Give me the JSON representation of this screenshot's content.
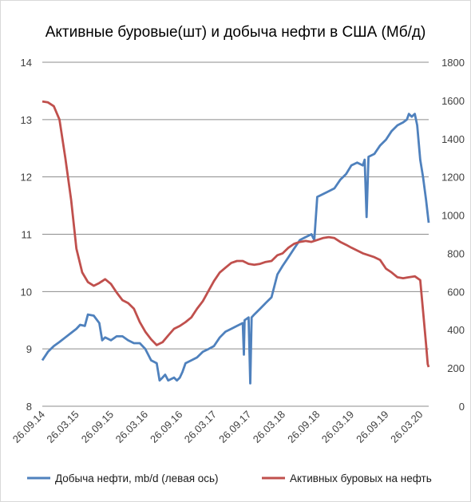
{
  "chart_data": {
    "type": "line",
    "title": "Активные буровые(шт) и добыча нефти в США (Мб/д)",
    "x_axis": {
      "tick_labels": [
        "26.09.14",
        "26.03.15",
        "26.09.15",
        "26.03.16",
        "26.09.16",
        "26.03.17",
        "26.09.17",
        "26.03.18",
        "26.09.18",
        "26.03.19",
        "26.09.19",
        "26.03.20"
      ],
      "range": [
        "26.09.14",
        "10.05.20"
      ]
    },
    "y_left": {
      "min": 8,
      "max": 14,
      "step": 1,
      "tick_labels": [
        "8",
        "9",
        "10",
        "11",
        "12",
        "13",
        "14"
      ]
    },
    "y_right": {
      "min": 0,
      "max": 1800,
      "step": 200,
      "tick_labels": [
        "0",
        "200",
        "400",
        "600",
        "800",
        "1000",
        "1200",
        "1400",
        "1600",
        "1800"
      ]
    },
    "grid": true,
    "legend_position": "bottom",
    "series": [
      {
        "name": "Добыча нефти, mb/d (левая ось)",
        "axis": "left",
        "color": "#4f81bd",
        "points": [
          [
            "26.09.14",
            8.8
          ],
          [
            "26.10.14",
            8.95
          ],
          [
            "26.11.14",
            9.05
          ],
          [
            "26.12.14",
            9.12
          ],
          [
            "26.01.15",
            9.2
          ],
          [
            "26.02.15",
            9.28
          ],
          [
            "26.03.15",
            9.35
          ],
          [
            "15.04.15",
            9.42
          ],
          [
            "10.05.15",
            9.4
          ],
          [
            "26.05.15",
            9.6
          ],
          [
            "26.06.15",
            9.58
          ],
          [
            "26.07.15",
            9.45
          ],
          [
            "10.08.15",
            9.15
          ],
          [
            "26.08.15",
            9.2
          ],
          [
            "26.09.15",
            9.15
          ],
          [
            "26.10.15",
            9.22
          ],
          [
            "26.11.15",
            9.22
          ],
          [
            "26.12.15",
            9.15
          ],
          [
            "26.01.16",
            9.1
          ],
          [
            "26.02.16",
            9.1
          ],
          [
            "26.03.16",
            9.0
          ],
          [
            "26.04.16",
            8.8
          ],
          [
            "26.05.16",
            8.75
          ],
          [
            "10.06.16",
            8.45
          ],
          [
            "26.06.16",
            8.5
          ],
          [
            "10.07.16",
            8.55
          ],
          [
            "26.07.16",
            8.45
          ],
          [
            "26.08.16",
            8.5
          ],
          [
            "10.09.16",
            8.45
          ],
          [
            "26.09.16",
            8.5
          ],
          [
            "10.10.16",
            8.6
          ],
          [
            "26.10.16",
            8.75
          ],
          [
            "26.11.16",
            8.8
          ],
          [
            "26.12.16",
            8.85
          ],
          [
            "26.01.17",
            8.95
          ],
          [
            "26.02.17",
            9.0
          ],
          [
            "26.03.17",
            9.05
          ],
          [
            "26.04.17",
            9.2
          ],
          [
            "26.05.17",
            9.3
          ],
          [
            "26.06.17",
            9.35
          ],
          [
            "26.07.17",
            9.4
          ],
          [
            "26.08.17",
            9.45
          ],
          [
            "01.09.17",
            8.9
          ],
          [
            "05.09.17",
            9.5
          ],
          [
            "26.09.17",
            9.55
          ],
          [
            "05.10.17",
            8.4
          ],
          [
            "12.10.17",
            9.55
          ],
          [
            "26.10.17",
            9.6
          ],
          [
            "26.11.17",
            9.7
          ],
          [
            "26.12.17",
            9.8
          ],
          [
            "26.01.18",
            9.9
          ],
          [
            "26.02.18",
            10.3
          ],
          [
            "26.03.18",
            10.45
          ],
          [
            "26.04.18",
            10.6
          ],
          [
            "26.05.18",
            10.75
          ],
          [
            "26.06.18",
            10.9
          ],
          [
            "26.07.18",
            10.95
          ],
          [
            "26.08.18",
            11.0
          ],
          [
            "10.09.18",
            10.9
          ],
          [
            "26.09.18",
            11.65
          ],
          [
            "26.10.18",
            11.7
          ],
          [
            "26.11.18",
            11.75
          ],
          [
            "26.12.18",
            11.8
          ],
          [
            "26.01.19",
            11.95
          ],
          [
            "26.02.19",
            12.05
          ],
          [
            "26.03.19",
            12.2
          ],
          [
            "26.04.19",
            12.25
          ],
          [
            "26.05.19",
            12.2
          ],
          [
            "05.06.19",
            12.3
          ],
          [
            "15.06.19",
            11.3
          ],
          [
            "25.06.19",
            12.35
          ],
          [
            "26.07.19",
            12.4
          ],
          [
            "26.08.19",
            12.55
          ],
          [
            "26.09.19",
            12.65
          ],
          [
            "26.10.19",
            12.8
          ],
          [
            "26.11.19",
            12.9
          ],
          [
            "26.12.19",
            12.95
          ],
          [
            "15.01.20",
            13.0
          ],
          [
            "26.01.20",
            13.1
          ],
          [
            "10.02.20",
            13.05
          ],
          [
            "26.02.20",
            13.1
          ],
          [
            "10.03.20",
            12.9
          ],
          [
            "26.03.20",
            12.3
          ],
          [
            "10.04.20",
            12.0
          ],
          [
            "26.04.20",
            11.6
          ],
          [
            "10.05.20",
            11.2
          ]
        ]
      },
      {
        "name": "Активных буровых на нефть",
        "axis": "right",
        "color": "#c0504d",
        "points": [
          [
            "26.09.14",
            1595
          ],
          [
            "26.10.14",
            1590
          ],
          [
            "26.11.14",
            1570
          ],
          [
            "26.12.14",
            1500
          ],
          [
            "26.01.15",
            1300
          ],
          [
            "26.02.15",
            1080
          ],
          [
            "26.03.15",
            825
          ],
          [
            "26.04.15",
            700
          ],
          [
            "26.05.15",
            650
          ],
          [
            "26.06.15",
            630
          ],
          [
            "26.07.15",
            645
          ],
          [
            "26.08.15",
            665
          ],
          [
            "26.09.15",
            640
          ],
          [
            "26.10.15",
            595
          ],
          [
            "26.11.15",
            555
          ],
          [
            "26.12.15",
            540
          ],
          [
            "26.01.16",
            510
          ],
          [
            "26.02.16",
            440
          ],
          [
            "26.03.16",
            390
          ],
          [
            "26.04.16",
            350
          ],
          [
            "26.05.16",
            320
          ],
          [
            "26.06.16",
            335
          ],
          [
            "26.07.16",
            370
          ],
          [
            "26.08.16",
            405
          ],
          [
            "26.09.16",
            420
          ],
          [
            "26.10.16",
            440
          ],
          [
            "26.11.16",
            465
          ],
          [
            "26.12.16",
            510
          ],
          [
            "26.01.17",
            550
          ],
          [
            "26.02.17",
            605
          ],
          [
            "26.03.17",
            655
          ],
          [
            "26.04.17",
            700
          ],
          [
            "26.05.17",
            725
          ],
          [
            "26.06.17",
            750
          ],
          [
            "26.07.17",
            760
          ],
          [
            "26.08.17",
            760
          ],
          [
            "26.09.17",
            745
          ],
          [
            "26.10.17",
            740
          ],
          [
            "26.11.17",
            745
          ],
          [
            "26.12.17",
            755
          ],
          [
            "26.01.18",
            760
          ],
          [
            "26.02.18",
            790
          ],
          [
            "26.03.18",
            800
          ],
          [
            "26.04.18",
            830
          ],
          [
            "26.05.18",
            850
          ],
          [
            "26.06.18",
            860
          ],
          [
            "26.07.18",
            865
          ],
          [
            "26.08.18",
            860
          ],
          [
            "26.09.18",
            870
          ],
          [
            "26.10.18",
            880
          ],
          [
            "26.11.18",
            885
          ],
          [
            "26.12.18",
            880
          ],
          [
            "26.01.19",
            860
          ],
          [
            "26.02.19",
            845
          ],
          [
            "26.03.19",
            830
          ],
          [
            "26.04.19",
            815
          ],
          [
            "26.05.19",
            800
          ],
          [
            "26.06.19",
            790
          ],
          [
            "26.07.19",
            780
          ],
          [
            "26.08.19",
            765
          ],
          [
            "26.09.19",
            720
          ],
          [
            "26.10.19",
            700
          ],
          [
            "26.11.19",
            675
          ],
          [
            "26.12.19",
            670
          ],
          [
            "26.01.20",
            675
          ],
          [
            "26.02.20",
            680
          ],
          [
            "26.03.20",
            660
          ],
          [
            "10.04.20",
            500
          ],
          [
            "26.04.20",
            325
          ],
          [
            "05.05.20",
            220
          ],
          [
            "10.05.20",
            205
          ]
        ]
      }
    ]
  }
}
